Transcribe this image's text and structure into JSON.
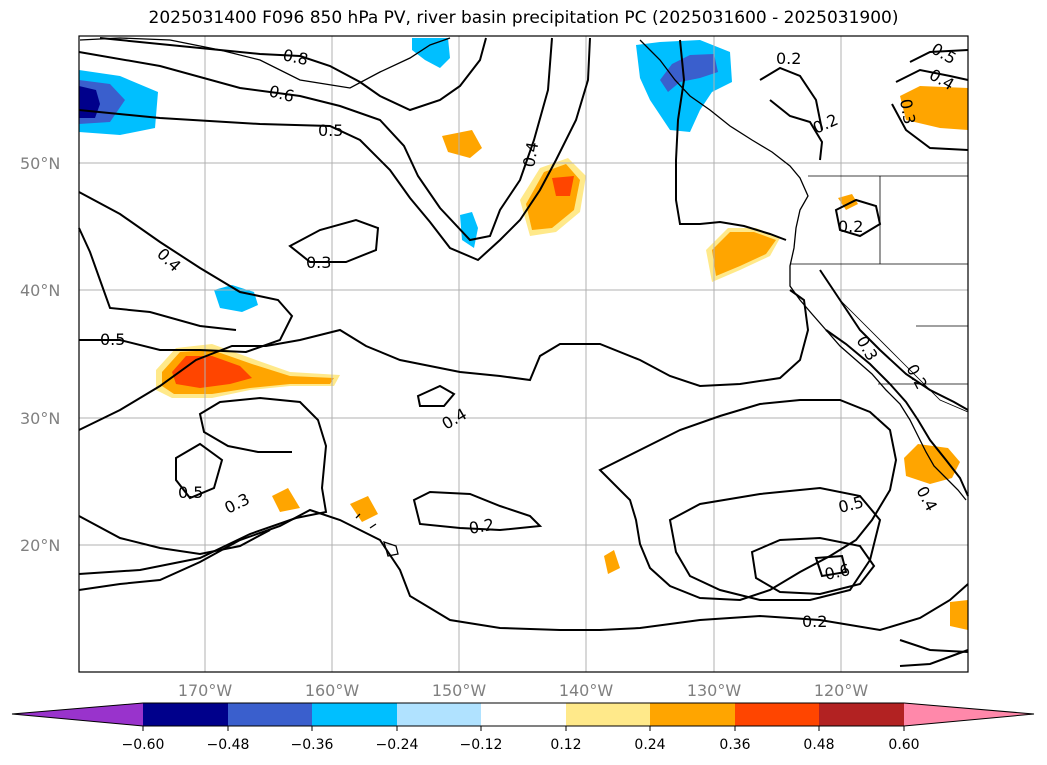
{
  "title": "2025031400 F096 850 hPa PV, river basin precipitation PC (2025031600 - 2025031900)",
  "map": {
    "lat_labels": [
      "50°N",
      "40°N",
      "30°N",
      "20°N"
    ],
    "lon_labels": [
      "170°W",
      "160°W",
      "150°W",
      "140°W",
      "130°W",
      "120°W"
    ],
    "contour_labels": [
      "0.8",
      "0.6",
      "0.5",
      "0.4",
      "0.3",
      "0.5",
      "0.4",
      "0.4",
      "0.5",
      "0.3",
      "0.2",
      "0.2",
      "0.2",
      "0.5",
      "0.6",
      "0.2",
      "0.2",
      "0.3",
      "0.2",
      "0.4",
      "0.5",
      "0.4",
      "0.3"
    ]
  },
  "colorbar": {
    "ticks": [
      "−0.60",
      "−0.48",
      "−0.36",
      "−0.24",
      "−0.12",
      "0.12",
      "0.24",
      "0.36",
      "0.48",
      "0.60"
    ],
    "colors": [
      "#9933cc",
      "#00008b",
      "#3a5fcd",
      "#00bfff",
      "#b0e2ff",
      "#ffffff",
      "#ffe98a",
      "#ffa500",
      "#ff4500",
      "#b22222",
      "#ff88aa"
    ]
  },
  "colors": {
    "neg_strong": "#00008b",
    "neg_mid": "#3a5fcd",
    "neg": "#00bfff",
    "neg_light": "#b0e2ff",
    "pos_light": "#ffe98a",
    "pos": "#ffa500",
    "pos_strong": "#ff4500"
  }
}
